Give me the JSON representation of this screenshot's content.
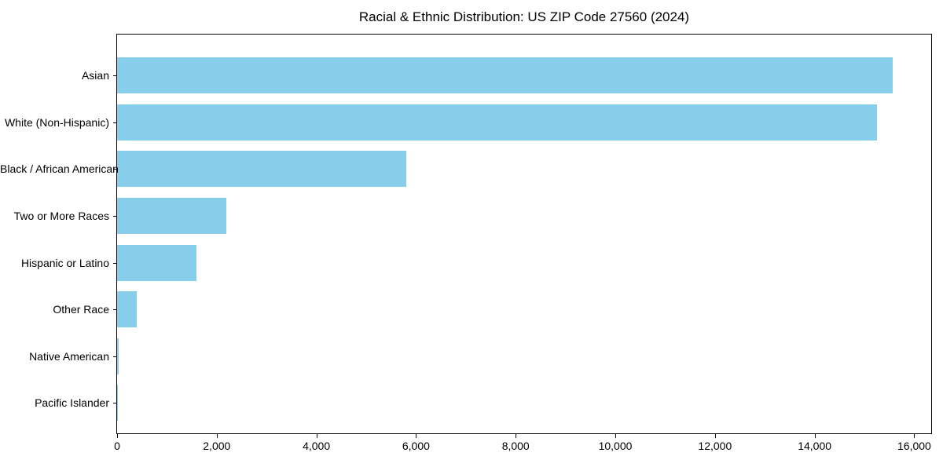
{
  "page": {
    "background": "#ffffff",
    "text_color": "#000000"
  },
  "chart_data": {
    "type": "bar",
    "orientation": "horizontal",
    "title": "Racial & Ethnic Distribution: US ZIP Code 27560 (2024)",
    "xlabel": "",
    "ylabel": "",
    "categories": [
      "Asian",
      "White (Non-Hispanic)",
      "Black / African American",
      "Two or More Races",
      "Hispanic or Latino",
      "Other Race",
      "Native American",
      "Pacific Islander"
    ],
    "values": [
      15560,
      15250,
      5810,
      2190,
      1590,
      400,
      30,
      10
    ],
    "xlim": [
      0,
      16340
    ],
    "x_ticks": [
      0,
      2000,
      4000,
      6000,
      8000,
      10000,
      12000,
      14000,
      16000
    ],
    "x_tick_labels": [
      "0",
      "2,000",
      "4,000",
      "6,000",
      "8,000",
      "10,000",
      "12,000",
      "14,000",
      "16,000"
    ],
    "bar_color": "#87ceeb",
    "frame_color": "#000000",
    "grid": false,
    "legend": null
  }
}
